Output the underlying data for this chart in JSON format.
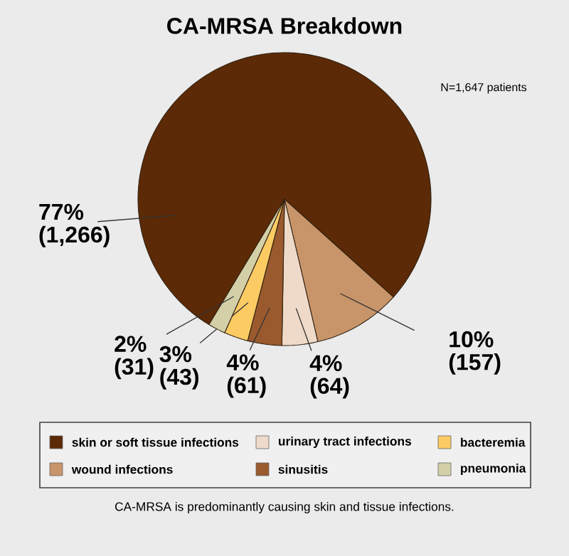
{
  "chart_data": {
    "type": "pie",
    "title": "CA-MRSA Breakdown",
    "categories": [
      "skin or soft tissue infections",
      "wound infections",
      "urinary tract infections",
      "sinusitis",
      "bacteremia",
      "pneumonia"
    ],
    "values": [
      1266,
      157,
      64,
      61,
      43,
      31
    ],
    "colors": [
      "#5c2a06",
      "#c8956a",
      "#efd9c8",
      "#9a5a2e",
      "#fccb63",
      "#d3d0a8"
    ],
    "value_labels": [
      "77% (1,266)",
      "10% (157)",
      "4% (64)",
      "4% (61)",
      "3% (43)",
      "2% (31)"
    ],
    "legend": "bottom",
    "annotations": [
      "N=1,647 patients",
      "CA-MRSA is predominantly causing skin and tissue infections."
    ]
  }
}
